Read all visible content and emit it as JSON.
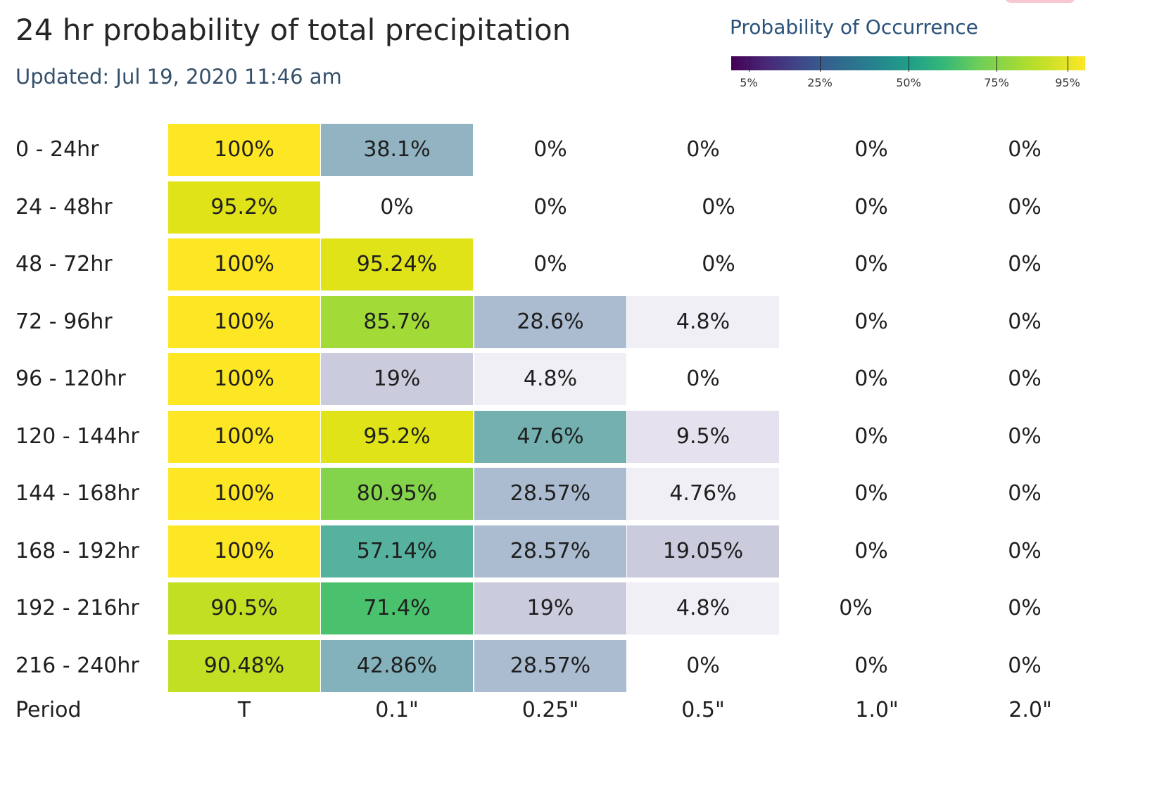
{
  "header": {
    "title": "24 hr probability of total precipitation",
    "updated": "Updated: Jul 19, 2020 11:46 am"
  },
  "legend": {
    "title": "Probability of Occurrence",
    "ticks": [
      "5%",
      "25%",
      "50%",
      "75%",
      "95%"
    ],
    "tick_values": [
      5,
      25,
      50,
      75,
      95
    ],
    "colormap": "viridis"
  },
  "chart_data": {
    "type": "heatmap",
    "title": "24 hr probability of total precipitation",
    "xlabel": "Period",
    "columns": [
      "T",
      "0.1\"",
      "0.25\"",
      "0.5\"",
      "1.0\"",
      "2.0\""
    ],
    "rows": [
      "0 - 24hr",
      "24 - 48hr",
      "48 - 72hr",
      "72 - 96hr",
      "96 - 120hr",
      "120 - 144hr",
      "144 - 168hr",
      "168 - 192hr",
      "192 - 216hr",
      "216 - 240hr"
    ],
    "labels": [
      [
        "100%",
        "38.1%",
        "0%",
        "0%",
        "0%",
        "0%"
      ],
      [
        "95.2%",
        "0%",
        "0%",
        "0%",
        "0%",
        "0%"
      ],
      [
        "100%",
        "95.24%",
        "0%",
        "0%",
        "0%",
        "0%"
      ],
      [
        "100%",
        "85.7%",
        "28.6%",
        "4.8%",
        "0%",
        "0%"
      ],
      [
        "100%",
        "19%",
        "4.8%",
        "0%",
        "0%",
        "0%"
      ],
      [
        "100%",
        "95.2%",
        "47.6%",
        "9.5%",
        "0%",
        "0%"
      ],
      [
        "100%",
        "80.95%",
        "28.57%",
        "4.76%",
        "0%",
        "0%"
      ],
      [
        "100%",
        "57.14%",
        "28.57%",
        "19.05%",
        "0%",
        "0%"
      ],
      [
        "90.5%",
        "71.4%",
        "19%",
        "4.8%",
        "0%",
        "0%"
      ],
      [
        "90.48%",
        "42.86%",
        "28.57%",
        "0%",
        "0%",
        "0%"
      ]
    ],
    "values": [
      [
        100,
        38.1,
        0,
        0,
        0,
        0
      ],
      [
        95.2,
        0,
        0,
        0,
        0,
        0
      ],
      [
        100,
        95.24,
        0,
        0,
        0,
        0
      ],
      [
        100,
        85.7,
        28.6,
        4.8,
        0,
        0
      ],
      [
        100,
        19,
        4.8,
        0,
        0,
        0
      ],
      [
        100,
        95.2,
        47.6,
        9.5,
        0,
        0
      ],
      [
        100,
        80.95,
        28.57,
        4.76,
        0,
        0
      ],
      [
        100,
        57.14,
        28.57,
        19.05,
        0,
        0
      ],
      [
        90.5,
        71.4,
        19,
        4.8,
        0,
        0
      ],
      [
        90.48,
        42.86,
        28.57,
        0,
        0,
        0
      ]
    ],
    "colors": [
      [
        "#fde725",
        "#91b3c2",
        "",
        "",
        "",
        ""
      ],
      [
        "#dfe318",
        "",
        "",
        "",
        "",
        ""
      ],
      [
        "#fde725",
        "#dfe318",
        "",
        "",
        "",
        ""
      ],
      [
        "#fde725",
        "#a2da37",
        "#abbcd0",
        "#f0eff5",
        "",
        ""
      ],
      [
        "#fde725",
        "#cbcbde",
        "#f0eff5",
        "",
        "",
        ""
      ],
      [
        "#fde725",
        "#dfe318",
        "#74b0b0",
        "#e5e1ee",
        "",
        ""
      ],
      [
        "#fde725",
        "#84d44b",
        "#abbcd0",
        "#f0eff5",
        "",
        ""
      ],
      [
        "#fde725",
        "#56b29f",
        "#abbcd0",
        "#cbcbde",
        "",
        ""
      ],
      [
        "#c2df23",
        "#4ac16d",
        "#cbcbde",
        "#f0eff5",
        "",
        ""
      ],
      [
        "#c2df23",
        "#84b2bc",
        "#abbcd0",
        "",
        "",
        ""
      ]
    ]
  }
}
